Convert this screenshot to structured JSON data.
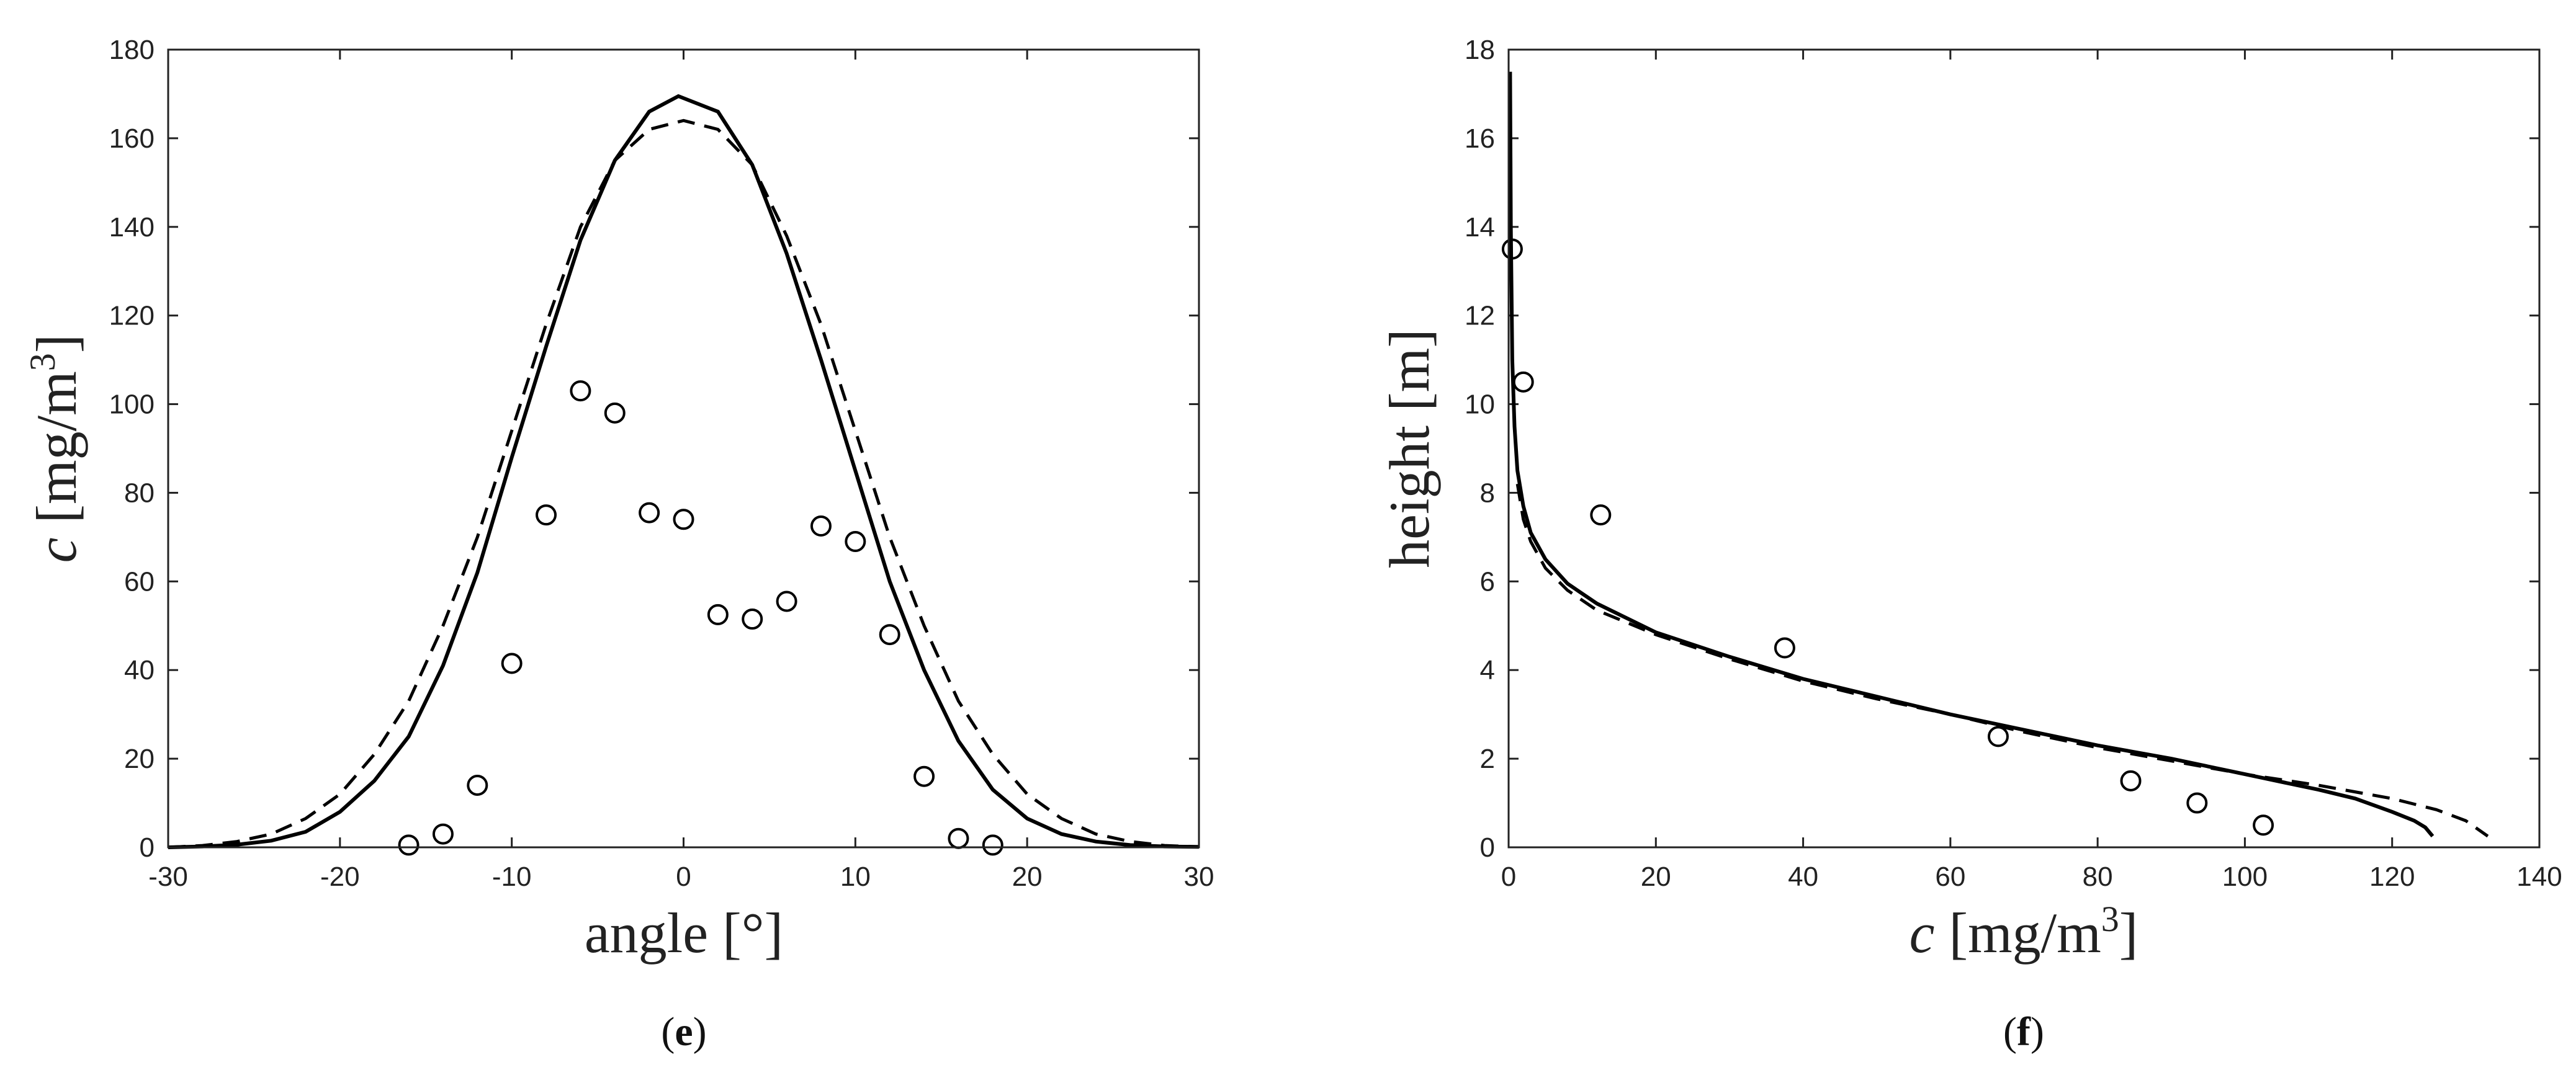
{
  "chart_data": [
    {
      "type": "line",
      "xlabel_main": "angle",
      "xlabel_unit": "[°]",
      "ylabel_var": "c",
      "ylabel_unit": "[mg/m",
      "ylabel_sup": "3",
      "ylabel_close": "]",
      "xlim": [
        -30,
        30
      ],
      "ylim": [
        0,
        180
      ],
      "xticks": [
        "-30",
        "-20",
        "-10",
        "0",
        "10",
        "20",
        "30"
      ],
      "yticks": [
        "0",
        "20",
        "40",
        "60",
        "80",
        "100",
        "120",
        "140",
        "160",
        "180"
      ],
      "caption_open": "(",
      "caption_letter": "e",
      "caption_close": ")",
      "series": [
        {
          "style": "solid",
          "x": [
            -30,
            -28,
            -26,
            -24,
            -22,
            -20,
            -18,
            -16,
            -14,
            -12,
            -10,
            -8,
            -6,
            -4,
            -2,
            -0.3,
            2,
            4,
            6,
            8,
            10,
            12,
            14,
            16,
            18,
            20,
            22,
            24,
            26,
            28,
            30
          ],
          "y": [
            0,
            0.2,
            0.6,
            1.5,
            3.5,
            8,
            15,
            25,
            41,
            62,
            88,
            113,
            137,
            155,
            166,
            169.5,
            166,
            154,
            134,
            110,
            85,
            60,
            40,
            24,
            13,
            6.5,
            3,
            1.3,
            0.5,
            0.2,
            0.1
          ]
        },
        {
          "style": "dashed",
          "x": [
            -30,
            -28,
            -26,
            -24,
            -22,
            -20,
            -18,
            -16,
            -14,
            -12,
            -10,
            -8,
            -6,
            -4,
            -2,
            0,
            2,
            4,
            6,
            8,
            10,
            12,
            14,
            16,
            18,
            20,
            22,
            24,
            26,
            28,
            30
          ],
          "y": [
            0,
            0.4,
            1.3,
            3,
            6.5,
            12,
            21,
            33,
            50,
            70,
            94,
            118,
            140,
            155,
            162,
            164,
            162,
            154,
            138,
            118,
            94,
            70,
            50,
            33,
            21,
            12,
            6.5,
            3,
            1.3,
            0.4,
            0.1
          ]
        },
        {
          "style": "markers",
          "x": [
            -16,
            -14,
            -12,
            -10,
            -8,
            -6,
            -4,
            -2,
            0,
            2,
            4,
            6,
            8,
            10,
            12,
            14,
            16,
            18
          ],
          "y": [
            0.5,
            3,
            14,
            41.5,
            75,
            103,
            98,
            75.5,
            74,
            52.5,
            51.5,
            55.5,
            72.5,
            69,
            48,
            16,
            2,
            0.5
          ]
        }
      ]
    },
    {
      "type": "line",
      "xlabel_var": "c",
      "xlabel_unit": "[mg/m",
      "xlabel_sup": "3",
      "xlabel_close": "]",
      "ylabel": "height [m]",
      "xlim": [
        0,
        140
      ],
      "ylim": [
        0,
        18
      ],
      "xticks": [
        "0",
        "20",
        "40",
        "60",
        "80",
        "100",
        "120",
        "140"
      ],
      "yticks": [
        "0",
        "2",
        "4",
        "6",
        "8",
        "10",
        "12",
        "14",
        "16",
        "18"
      ],
      "caption_open": "(",
      "caption_letter": "f",
      "caption_close": ")",
      "series": [
        {
          "style": "solid",
          "x": [
            0.2,
            0.3,
            0.5,
            0.8,
            1.2,
            2,
            3,
            5,
            8,
            12,
            20,
            30,
            40,
            50,
            60,
            70,
            80,
            90,
            100,
            110,
            115,
            120,
            123,
            124.5,
            125.5
          ],
          "y": [
            17.5,
            14,
            11,
            9.5,
            8.5,
            7.7,
            7.1,
            6.5,
            5.95,
            5.5,
            4.85,
            4.3,
            3.8,
            3.4,
            3.0,
            2.65,
            2.3,
            2.0,
            1.65,
            1.3,
            1.1,
            0.8,
            0.6,
            0.45,
            0.25
          ]
        },
        {
          "style": "dashed",
          "x": [
            1.2,
            2,
            3,
            5,
            8,
            12,
            20,
            30,
            40,
            50,
            60,
            70,
            80,
            90,
            100,
            110,
            120,
            126,
            130,
            133
          ],
          "y": [
            8.2,
            7.4,
            6.9,
            6.3,
            5.8,
            5.35,
            4.8,
            4.25,
            3.75,
            3.35,
            3.0,
            2.6,
            2.25,
            1.95,
            1.65,
            1.4,
            1.1,
            0.85,
            0.6,
            0.25
          ]
        },
        {
          "style": "markers",
          "x": [
            0.5,
            2,
            12.5,
            37.5,
            66.5,
            84.5,
            93.5,
            102.5
          ],
          "y": [
            13.5,
            10.5,
            7.5,
            4.5,
            2.5,
            1.5,
            1.0,
            0.5
          ]
        }
      ]
    }
  ]
}
